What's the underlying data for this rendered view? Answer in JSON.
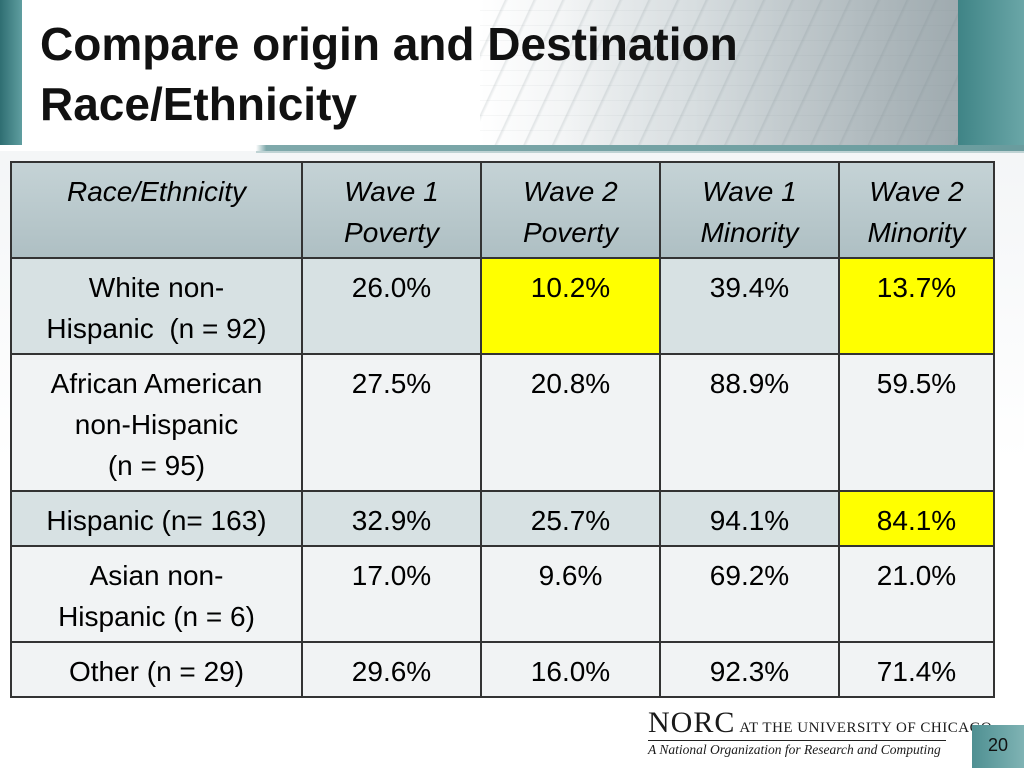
{
  "slide": {
    "title_line1": "Compare origin and Destination",
    "title_line2": "Race/Ethnicity",
    "page_number": "20"
  },
  "table": {
    "headers": [
      {
        "line1": "Race/Ethnicity",
        "line2": ""
      },
      {
        "line1": "Wave 1",
        "line2": "Poverty"
      },
      {
        "line1": "Wave 2",
        "line2": "Poverty"
      },
      {
        "line1": "Wave 1",
        "line2": "Minority"
      },
      {
        "line1": "Wave 2",
        "line2": "Minority"
      }
    ],
    "rows": [
      {
        "label_lines": [
          "White non-",
          "Hispanic  (n = 92)"
        ],
        "values": [
          "26.0%",
          "10.2%",
          "39.4%",
          "13.7%"
        ]
      },
      {
        "label_lines": [
          "African American",
          "non-Hispanic",
          "(n = 95)"
        ],
        "values": [
          "27.5%",
          "20.8%",
          "88.9%",
          "59.5%"
        ]
      },
      {
        "label_lines": [
          "Hispanic (n= 163)"
        ],
        "values": [
          "32.9%",
          "25.7%",
          "94.1%",
          "84.1%"
        ]
      },
      {
        "label_lines": [
          "Asian non-",
          "Hispanic (n = 6)"
        ],
        "values": [
          "17.0%",
          "9.6%",
          "69.2%",
          "21.0%"
        ]
      },
      {
        "label_lines": [
          "Other (n = 29)"
        ],
        "values": [
          "29.6%",
          "16.0%",
          "92.3%",
          "71.4%"
        ]
      }
    ]
  },
  "footer": {
    "logo_norc": "NORC",
    "logo_suffix": "AT THE UNIVERSITY OF CHICAGO",
    "logo_tagline": "A National Organization for Research and Computing"
  },
  "colors": {
    "highlight": "#ffff00",
    "header_fill": "#b9c9cd",
    "row_fill": "#d7e1e3",
    "accent_teal": "#4f9092"
  }
}
